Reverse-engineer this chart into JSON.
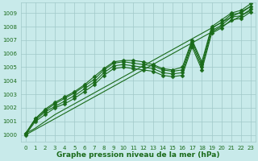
{
  "xlabel": "Graphe pression niveau de la mer (hPa)",
  "xlim": [
    -0.5,
    23.5
  ],
  "ylim": [
    999.5,
    1009.8
  ],
  "yticks": [
    1000,
    1001,
    1002,
    1003,
    1004,
    1005,
    1006,
    1007,
    1008,
    1009
  ],
  "xticks": [
    0,
    1,
    2,
    3,
    4,
    5,
    6,
    7,
    8,
    9,
    10,
    11,
    12,
    13,
    14,
    15,
    16,
    17,
    18,
    19,
    20,
    21,
    22,
    23
  ],
  "bg_color": "#c8eaea",
  "grid_color": "#a0c8c8",
  "line_color": "#1a6b1a",
  "marker_color": "#1a6b1a",
  "series": [
    [
      1000.1,
      1001.2,
      1001.8,
      1002.3,
      1002.7,
      1003.1,
      1003.6,
      1004.1,
      1004.8,
      1005.3,
      1005.4,
      1005.3,
      1005.2,
      1005.1,
      1004.8,
      1004.7,
      1004.8,
      1006.9,
      1005.2,
      1007.9,
      1008.3,
      1008.9,
      1009.0,
      1009.5
    ],
    [
      1000.1,
      1001.2,
      1001.9,
      1002.4,
      1002.8,
      1003.2,
      1003.7,
      1004.3,
      1004.9,
      1005.4,
      1005.5,
      1005.5,
      1005.4,
      1005.2,
      1004.9,
      1004.8,
      1005.0,
      1007.0,
      1005.4,
      1008.0,
      1008.5,
      1009.0,
      1009.2,
      1009.7
    ],
    [
      1000.1,
      1001.1,
      1001.7,
      1002.1,
      1002.5,
      1002.9,
      1003.4,
      1003.9,
      1004.6,
      1005.1,
      1005.2,
      1005.1,
      1005.0,
      1004.9,
      1004.6,
      1004.5,
      1004.6,
      1006.7,
      1005.0,
      1007.7,
      1008.1,
      1008.7,
      1008.8,
      1009.3
    ],
    [
      1000.0,
      1001.0,
      1001.5,
      1002.0,
      1002.3,
      1002.7,
      1003.2,
      1003.7,
      1004.4,
      1004.9,
      1005.0,
      1004.9,
      1004.8,
      1004.7,
      1004.4,
      1004.3,
      1004.4,
      1006.5,
      1004.8,
      1007.5,
      1007.9,
      1008.5,
      1008.6,
      1009.1
    ]
  ],
  "linear_series": [
    [
      1000.1,
      1000.5,
      1001.0,
      1001.5,
      1001.9,
      1002.3,
      1002.7,
      1003.1,
      1003.5,
      1003.9,
      1004.3,
      1004.7,
      1005.1,
      1005.5,
      1005.9,
      1006.3,
      1006.7,
      1007.1,
      1007.5,
      1007.9,
      1008.3,
      1008.7,
      1009.1,
      1009.5
    ],
    [
      1000.0,
      1000.4,
      1000.8,
      1001.2,
      1001.6,
      1002.0,
      1002.4,
      1002.8,
      1003.2,
      1003.6,
      1004.0,
      1004.4,
      1004.8,
      1005.2,
      1005.6,
      1006.0,
      1006.4,
      1006.8,
      1007.2,
      1007.6,
      1008.0,
      1008.4,
      1008.8,
      1009.2
    ]
  ],
  "marker": "D",
  "marker_size": 2.5,
  "line_width": 0.8,
  "xlabel_fontsize": 6.5,
  "tick_fontsize": 5,
  "tick_color": "#1a6b1a",
  "xlabel_color": "#1a6b1a",
  "xlabel_fontweight": "bold"
}
